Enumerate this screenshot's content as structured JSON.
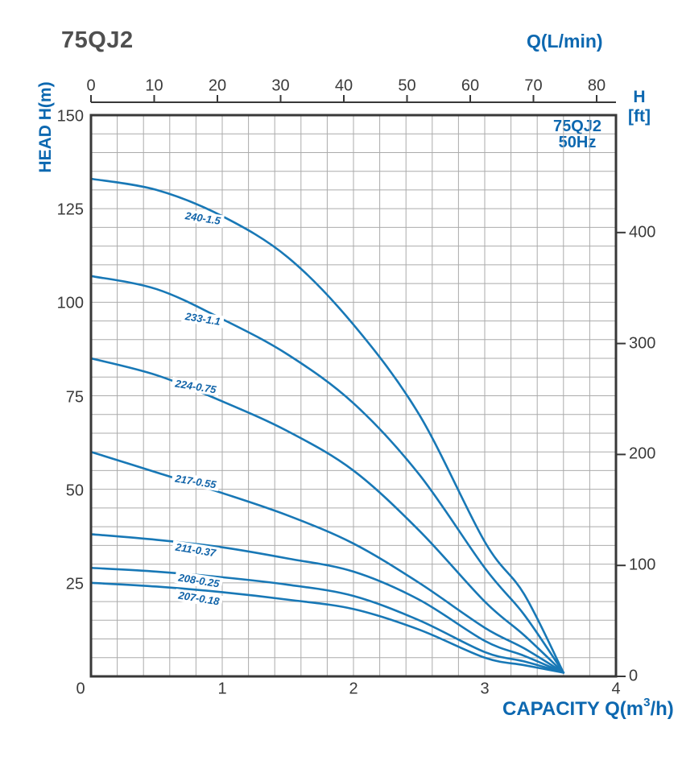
{
  "page": {
    "title": "75QJ2"
  },
  "chart_data": {
    "type": "line",
    "title": "75QJ2",
    "inset_label": {
      "line1": "75QJ2",
      "line2": "50Hz"
    },
    "axes": {
      "top": {
        "title": "Q(L/min)",
        "ticks": [
          "0",
          "10",
          "20",
          "30",
          "40",
          "50",
          "60",
          "70",
          "80"
        ]
      },
      "bottom": {
        "title_pre": "CAPACITY Q(m",
        "title_sup": "3",
        "title_post": "/h)",
        "ticks": [
          "0",
          "1",
          "2",
          "3",
          "4"
        ],
        "range": [
          0,
          4
        ],
        "grid_step": 0.2
      },
      "left": {
        "title": "HEAD H(m)",
        "ticks": [
          "150",
          "125",
          "100",
          "75",
          "50",
          "25"
        ],
        "tick_values": [
          150,
          125,
          100,
          75,
          50,
          25
        ],
        "range": [
          0,
          150
        ],
        "grid_step": 5
      },
      "right": {
        "title_line1": "H",
        "title_line2": "[ft]",
        "ticks": [
          "400",
          "300",
          "200",
          "100",
          "0"
        ],
        "tick_values": [
          400,
          300,
          200,
          100,
          0
        ]
      }
    },
    "series": [
      {
        "label": "240-1.5",
        "q": [
          0,
          0.5,
          1,
          1.5,
          2,
          2.5,
          3,
          3.3,
          3.6
        ],
        "h": [
          133,
          130,
          123,
          112,
          94,
          70,
          36,
          22,
          1
        ],
        "label_at": {
          "q": 0.85,
          "h": 122.5
        }
      },
      {
        "label": "233-1.1",
        "q": [
          0,
          0.5,
          1,
          1.5,
          2,
          2.5,
          3,
          3.3,
          3.6
        ],
        "h": [
          107,
          103.5,
          95.5,
          86,
          73,
          54,
          29,
          16.5,
          1
        ],
        "label_at": {
          "q": 0.85,
          "h": 95.5
        }
      },
      {
        "label": "224-0.75",
        "q": [
          0,
          0.5,
          1,
          1.5,
          2,
          2.5,
          3,
          3.3,
          3.6
        ],
        "h": [
          85,
          80.5,
          73.5,
          65.5,
          55,
          39,
          20,
          11,
          1
        ],
        "label_at": {
          "q": 0.8,
          "h": 77.5
        }
      },
      {
        "label": "217-0.55",
        "q": [
          0,
          0.5,
          1,
          1.5,
          2,
          2.5,
          3,
          3.3,
          3.6
        ],
        "h": [
          60,
          54.5,
          49,
          43,
          35.5,
          25,
          13,
          7.5,
          1
        ],
        "label_at": {
          "q": 0.8,
          "h": 52
        }
      },
      {
        "label": "211-0.37",
        "q": [
          0,
          0.5,
          1,
          1.5,
          2,
          2.5,
          3,
          3.3,
          3.6
        ],
        "h": [
          38,
          36.5,
          34.5,
          31.5,
          28,
          20.5,
          9.5,
          5.5,
          1
        ],
        "label_at": {
          "q": 0.8,
          "h": 33.7
        }
      },
      {
        "label": "208-0.25",
        "q": [
          0,
          0.5,
          1,
          1.5,
          2,
          2.5,
          3,
          3.3,
          3.6
        ],
        "h": [
          29,
          28,
          26.5,
          24.5,
          21.5,
          15,
          6.5,
          4,
          1
        ],
        "label_at": {
          "q": 0.82,
          "h": 25.6
        }
      },
      {
        "label": "207-0.18",
        "q": [
          0,
          0.5,
          1,
          1.5,
          2,
          2.5,
          3,
          3.3,
          3.6
        ],
        "h": [
          25,
          24,
          22.5,
          20.5,
          18,
          12.5,
          5,
          3,
          1
        ],
        "label_at": {
          "q": 0.82,
          "h": 20.8
        }
      }
    ],
    "colors": {
      "curve": "#1878b6",
      "curve_label_text": "#1063a8",
      "axis_title_text": "#0d68b0",
      "tick_text": "#3b3b3b",
      "grid": "#ababab",
      "border": "#383838",
      "title_text": "#4f4f4f"
    }
  }
}
